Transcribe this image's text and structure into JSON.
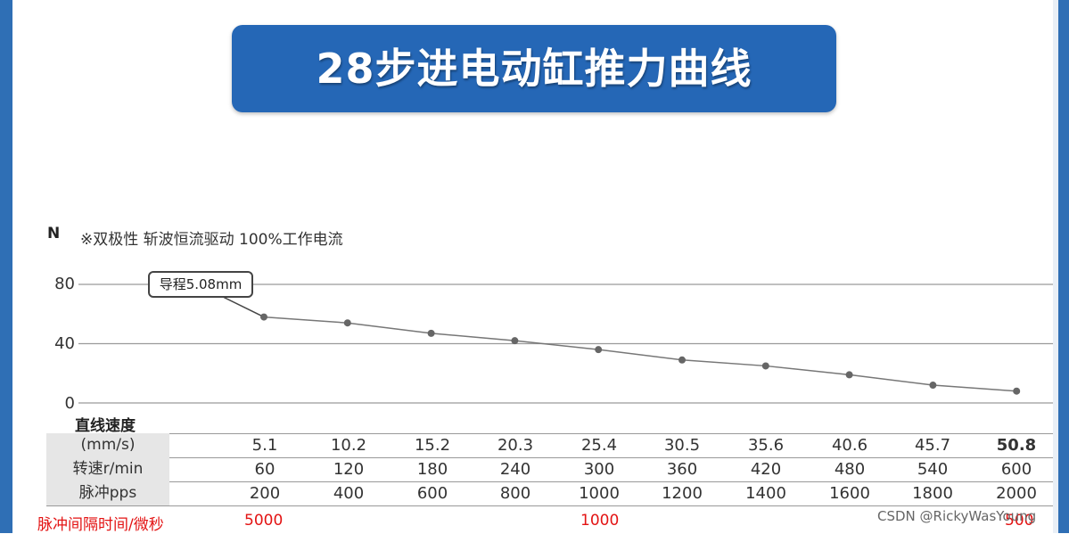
{
  "title": "28步进电动缸推力曲线",
  "annotation": "※双极性 斩波恒流驱动 100%工作电流",
  "callout": "导程5.08mm",
  "table": {
    "speed_heading": "直线速度",
    "rows": [
      {
        "label": "(mm/s)",
        "values": [
          "5.1",
          "10.2",
          "15.2",
          "20.3",
          "25.4",
          "30.5",
          "35.6",
          "40.6",
          "45.7",
          "50.8"
        ]
      },
      {
        "label": "转速r/min",
        "values": [
          "60",
          "120",
          "180",
          "240",
          "300",
          "360",
          "420",
          "480",
          "540",
          "600"
        ]
      },
      {
        "label": "脉冲pps",
        "values": [
          "200",
          "400",
          "600",
          "800",
          "1000",
          "1200",
          "1400",
          "1600",
          "1800",
          "2000"
        ]
      }
    ]
  },
  "pulse_note": {
    "label": "脉冲间隔时间/微秒",
    "values": [
      "5000",
      "1000",
      "500"
    ]
  },
  "watermark": "CSDN @RickyWasYoung",
  "colors": {
    "title_bg": "#2567b6",
    "edge": "#2f6fb5",
    "note_red": "#e31313",
    "curve": "#777777"
  },
  "chart_data": {
    "type": "line",
    "title": "28步进电动缸推力曲线",
    "ylabel": "N",
    "xlabel": "直线速度 (mm/s)",
    "ylim": [
      0,
      80
    ],
    "yticks": [
      0,
      40,
      80
    ],
    "categories": [
      "5.1",
      "10.2",
      "15.2",
      "20.3",
      "25.4",
      "30.5",
      "35.6",
      "40.6",
      "45.7",
      "50.8"
    ],
    "series": [
      {
        "name": "导程5.08mm",
        "values": [
          58,
          54,
          47,
          42,
          36,
          29,
          25,
          19,
          12,
          8
        ]
      }
    ],
    "grid": true
  }
}
